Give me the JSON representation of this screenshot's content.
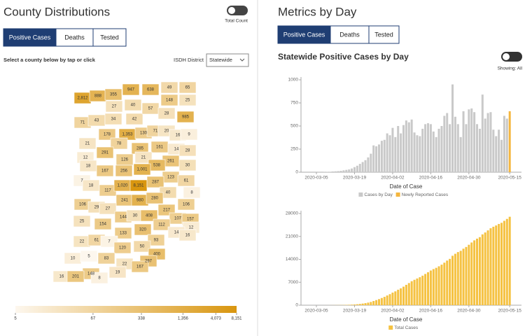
{
  "left_panel": {
    "title": "County Distributions",
    "toggle_label": "Total Count",
    "tabs": [
      "Positive Cases",
      "Deaths",
      "Tested"
    ],
    "active_tab": 0,
    "instruction": "Select a county below by tap or click",
    "district_label": "ISDH District",
    "district_value": "Statewide",
    "counties": {
      "values": [
        2812,
        888,
        355,
        947,
        638,
        49,
        65,
        27,
        40,
        148,
        25,
        71,
        43,
        34,
        42,
        57,
        28,
        985,
        21,
        178,
        1353,
        130,
        71,
        20,
        16,
        9,
        78,
        161,
        14,
        28,
        12,
        291,
        285,
        21,
        261,
        18,
        126,
        538,
        30,
        167,
        256,
        1001,
        7,
        18,
        123,
        61,
        117,
        1020,
        8151,
        287,
        40,
        8,
        106,
        29,
        241,
        980,
        280,
        27,
        217,
        106,
        25,
        154,
        144,
        30,
        408,
        107,
        157,
        112,
        12,
        133,
        320,
        14,
        22,
        61,
        7,
        93,
        16,
        120,
        50,
        10,
        5,
        83,
        400,
        22,
        297,
        148,
        19,
        167,
        16,
        201,
        8
      ],
      "value_labels": [
        "2,812",
        "888",
        "355",
        "947",
        "638",
        "49",
        "65",
        "27",
        "40",
        "148",
        "25",
        "71",
        "43",
        "34",
        "42",
        "57",
        "28",
        "985",
        "21",
        "178",
        "1,353",
        "130",
        "71",
        "20",
        "16",
        "9",
        "78",
        "161",
        "14",
        "28",
        "12",
        "291",
        "285",
        "21",
        "261",
        "18",
        "126",
        "538",
        "30",
        "167",
        "256",
        "1,001",
        "7",
        "18",
        "123",
        "61",
        "117",
        "1,020",
        "8,151",
        "287",
        "40",
        "8",
        "106",
        "29",
        "241",
        "980",
        "280",
        "27",
        "217",
        "106",
        "25",
        "154",
        "144",
        "30",
        "408",
        "107",
        "157",
        "112",
        "12",
        "133",
        "320",
        "14",
        "22",
        "61",
        "7",
        "93",
        "16",
        "120",
        "50",
        "10",
        "5",
        "83",
        "400",
        "22",
        "297",
        "148",
        "19",
        "167",
        "16",
        "201",
        "8"
      ]
    },
    "colorbar": {
      "lim": [
        5,
        8151
      ],
      "log": true,
      "colors": [
        "#fdf7ee",
        "#d9960f"
      ],
      "ticks": [
        5,
        67,
        338,
        {
          "value": 1356,
          "label": "1,356"
        },
        {
          "value": 4073,
          "label": "4,073"
        },
        {
          "value": 8151,
          "label": "8,151"
        }
      ]
    }
  },
  "right_panel": {
    "title": "Metrics by Day",
    "tabs": [
      "Positive Cases",
      "Deaths",
      "Tested"
    ],
    "active_tab": 0,
    "toggle_label": "Showing: All"
  },
  "chart_data": [
    {
      "type": "bar",
      "title": "Statewide Positive Cases by Day",
      "xlabel": "Date of Case",
      "x": [
        "2020-03-05",
        "2020-03-06",
        "2020-03-07",
        "2020-03-08",
        "2020-03-09",
        "2020-03-10",
        "2020-03-11",
        "2020-03-12",
        "2020-03-13",
        "2020-03-14",
        "2020-03-15",
        "2020-03-16",
        "2020-03-17",
        "2020-03-18",
        "2020-03-19",
        "2020-03-20",
        "2020-03-21",
        "2020-03-22",
        "2020-03-23",
        "2020-03-24",
        "2020-03-25",
        "2020-03-26",
        "2020-03-27",
        "2020-03-28",
        "2020-03-29",
        "2020-03-30",
        "2020-03-31",
        "2020-04-01",
        "2020-04-02",
        "2020-04-03",
        "2020-04-04",
        "2020-04-05",
        "2020-04-06",
        "2020-04-07",
        "2020-04-08",
        "2020-04-09",
        "2020-04-10",
        "2020-04-11",
        "2020-04-12",
        "2020-04-13",
        "2020-04-14",
        "2020-04-15",
        "2020-04-16",
        "2020-04-17",
        "2020-04-18",
        "2020-04-19",
        "2020-04-20",
        "2020-04-21",
        "2020-04-22",
        "2020-04-23",
        "2020-04-24",
        "2020-04-25",
        "2020-04-26",
        "2020-04-27",
        "2020-04-28",
        "2020-04-29",
        "2020-04-30",
        "2020-05-01",
        "2020-05-02",
        "2020-05-03",
        "2020-05-04",
        "2020-05-05",
        "2020-05-06",
        "2020-05-07",
        "2020-05-08",
        "2020-05-09",
        "2020-05-10",
        "2020-05-11",
        "2020-05-12",
        "2020-05-13",
        "2020-05-14",
        "2020-05-15"
      ],
      "xticks": [
        "2020-03-05",
        "2020-03-19",
        "2020-04-02",
        "2020-04-16",
        "2020-04-30",
        "2020-05-15"
      ],
      "ylim": [
        0,
        1000
      ],
      "yticks": [
        0,
        250,
        500,
        750,
        1000
      ],
      "legend": "bottom",
      "series": [
        {
          "name": "Cases by Day",
          "color": "#c9c9c9",
          "values": [
            0,
            1,
            0,
            2,
            3,
            5,
            8,
            10,
            12,
            15,
            20,
            25,
            30,
            40,
            55,
            70,
            90,
            110,
            130,
            160,
            200,
            290,
            280,
            300,
            340,
            350,
            420,
            400,
            480,
            380,
            500,
            420,
            510,
            560,
            540,
            570,
            430,
            400,
            390,
            470,
            520,
            530,
            520,
            440,
            380,
            470,
            500,
            610,
            640,
            520,
            950,
            600,
            520,
            380,
            660,
            520,
            680,
            690,
            650,
            520,
            470,
            840,
            580,
            640,
            650,
            460,
            390,
            460,
            350,
            610,
            580,
            null
          ]
        },
        {
          "name": "Newly Reported Cases",
          "color": "#f4b63f",
          "values": [
            null,
            null,
            null,
            null,
            null,
            null,
            null,
            null,
            null,
            null,
            null,
            null,
            null,
            null,
            null,
            null,
            null,
            null,
            null,
            null,
            null,
            null,
            null,
            null,
            null,
            null,
            null,
            null,
            null,
            null,
            null,
            null,
            null,
            null,
            null,
            null,
            null,
            null,
            null,
            null,
            null,
            null,
            null,
            null,
            null,
            null,
            null,
            null,
            null,
            null,
            null,
            null,
            null,
            null,
            null,
            null,
            null,
            null,
            null,
            null,
            null,
            null,
            null,
            null,
            null,
            null,
            null,
            null,
            null,
            null,
            null,
            660
          ]
        }
      ]
    },
    {
      "type": "bar",
      "xlabel": "Date of Case",
      "x": [
        "2020-03-05",
        "2020-03-06",
        "2020-03-07",
        "2020-03-08",
        "2020-03-09",
        "2020-03-10",
        "2020-03-11",
        "2020-03-12",
        "2020-03-13",
        "2020-03-14",
        "2020-03-15",
        "2020-03-16",
        "2020-03-17",
        "2020-03-18",
        "2020-03-19",
        "2020-03-20",
        "2020-03-21",
        "2020-03-22",
        "2020-03-23",
        "2020-03-24",
        "2020-03-25",
        "2020-03-26",
        "2020-03-27",
        "2020-03-28",
        "2020-03-29",
        "2020-03-30",
        "2020-03-31",
        "2020-04-01",
        "2020-04-02",
        "2020-04-03",
        "2020-04-04",
        "2020-04-05",
        "2020-04-06",
        "2020-04-07",
        "2020-04-08",
        "2020-04-09",
        "2020-04-10",
        "2020-04-11",
        "2020-04-12",
        "2020-04-13",
        "2020-04-14",
        "2020-04-15",
        "2020-04-16",
        "2020-04-17",
        "2020-04-18",
        "2020-04-19",
        "2020-04-20",
        "2020-04-21",
        "2020-04-22",
        "2020-04-23",
        "2020-04-24",
        "2020-04-25",
        "2020-04-26",
        "2020-04-27",
        "2020-04-28",
        "2020-04-29",
        "2020-04-30",
        "2020-05-01",
        "2020-05-02",
        "2020-05-03",
        "2020-05-04",
        "2020-05-05",
        "2020-05-06",
        "2020-05-07",
        "2020-05-08",
        "2020-05-09",
        "2020-05-10",
        "2020-05-11",
        "2020-05-12",
        "2020-05-13",
        "2020-05-14",
        "2020-05-15"
      ],
      "xticks": [
        "2020-03-05",
        "2020-03-19",
        "2020-04-02",
        "2020-04-16",
        "2020-04-30",
        "2020-05-15"
      ],
      "ylim": [
        0,
        28000
      ],
      "yticks": [
        0,
        7000,
        14000,
        21000,
        28000
      ],
      "legend": "bottom",
      "series": [
        {
          "name": "Total Cases",
          "color": "#f5c242",
          "values": [
            0,
            1,
            1,
            3,
            6,
            11,
            19,
            29,
            41,
            56,
            76,
            101,
            131,
            171,
            226,
            296,
            386,
            496,
            626,
            786,
            986,
            1276,
            1556,
            1856,
            2196,
            2546,
            2966,
            3366,
            3846,
            4226,
            4726,
            5146,
            5656,
            6216,
            6756,
            7326,
            7756,
            8156,
            8546,
            9016,
            9536,
            10066,
            10586,
            11026,
            11406,
            11876,
            12376,
            12986,
            13626,
            14146,
            15096,
            15696,
            16216,
            16596,
            17256,
            17776,
            18456,
            19146,
            19796,
            20316,
            20786,
            21626,
            22206,
            22846,
            23496,
            23956,
            24346,
            24806,
            25156,
            25766,
            26346,
            27006
          ]
        }
      ]
    }
  ]
}
